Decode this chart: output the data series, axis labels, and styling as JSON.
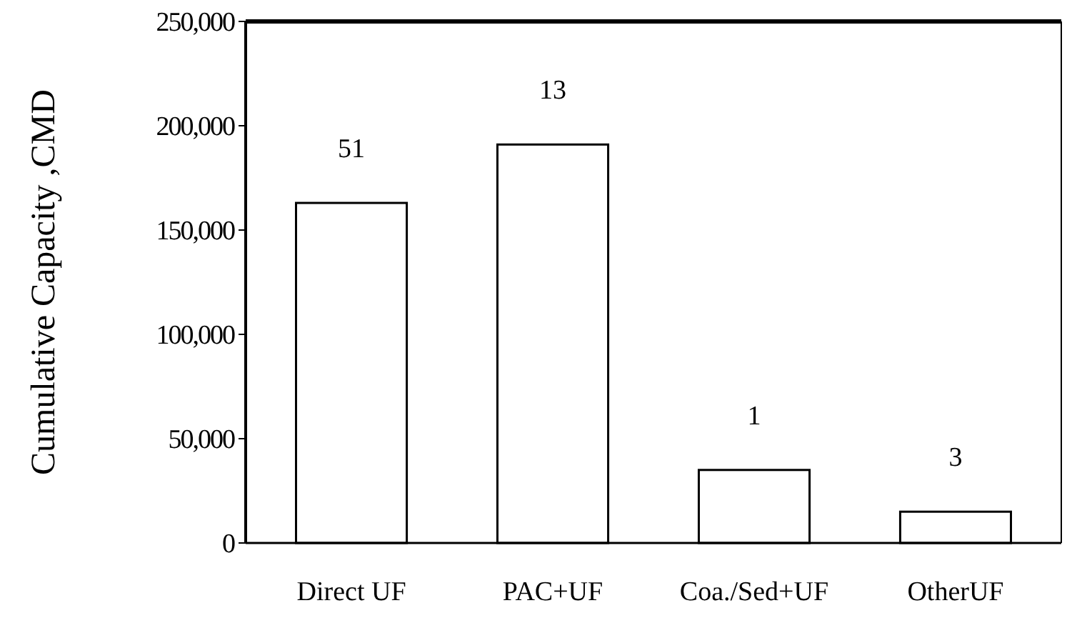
{
  "chart_data": {
    "type": "bar",
    "ylabel": "Cumulative Capacity ,CMD",
    "categories": [
      "Direct UF",
      "PAC+UF",
      "Coa./Sed+UF",
      "OtherUF"
    ],
    "values": [
      163000,
      191000,
      35000,
      15000
    ],
    "annotations": [
      {
        "text": "51",
        "x": "Direct UF",
        "y": 163000
      },
      {
        "text": "13",
        "x": "PAC+UF",
        "y": 191000
      },
      {
        "text": "1",
        "x": "Coa./Sed+UF",
        "y": 35000
      },
      {
        "text": "3",
        "x": "OtherUF",
        "y": 15000
      }
    ],
    "color": "#ffffff",
    "ylim": [
      0,
      250000
    ],
    "yticks": [
      {
        "value": 0,
        "label": "0"
      },
      {
        "value": 50000,
        "label": "50,000"
      },
      {
        "value": 100000,
        "label": "100,000"
      },
      {
        "value": 150000,
        "label": "150,000"
      },
      {
        "value": 200000,
        "label": "200,000"
      },
      {
        "value": 250000,
        "label": "250,000"
      }
    ],
    "grid": false
  }
}
